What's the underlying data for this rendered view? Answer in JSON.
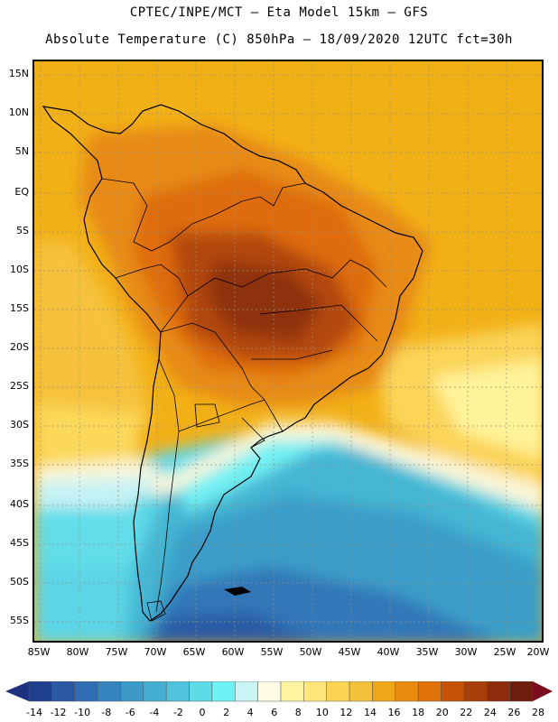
{
  "title_line1": "CPTEC/INPE/MCT –  Eta Model 15km – GFS",
  "title_line2": "Absolute Temperature (C) 850hPa – 18/09/2020 12UTC fct=30h",
  "latitudes": [
    "15N",
    "10N",
    "5N",
    "EQ",
    "5S",
    "10S",
    "15S",
    "20S",
    "25S",
    "30S",
    "35S",
    "40S",
    "45S",
    "50S",
    "55S"
  ],
  "longitudes": [
    "85W",
    "80W",
    "75W",
    "70W",
    "65W",
    "60W",
    "55W",
    "50W",
    "45W",
    "40W",
    "35W",
    "30W",
    "25W",
    "20W"
  ],
  "colorbar": {
    "ticks": [
      "-14",
      "-12",
      "-10",
      "-8",
      "-6",
      "-4",
      "-2",
      "0",
      "2",
      "4",
      "6",
      "8",
      "10",
      "12",
      "14",
      "16",
      "18",
      "20",
      "22",
      "24",
      "26",
      "28"
    ],
    "colors": [
      "#1e3f8f",
      "#2a58a5",
      "#2f6eb5",
      "#3584c0",
      "#3c9ac9",
      "#44afd2",
      "#4fc3dd",
      "#5fdbe8",
      "#6ff2f4",
      "#c8f4f6",
      "#fffbe4",
      "#fff5a0",
      "#ffe67a",
      "#fcd455",
      "#f4c23a",
      "#eea716",
      "#e98b0c",
      "#e07008",
      "#c65208",
      "#a63e0a",
      "#8c2c0c",
      "#6e1c0c"
    ],
    "low_arrow_color": "#203080",
    "high_arrow_color": "#7a0c1e"
  }
}
